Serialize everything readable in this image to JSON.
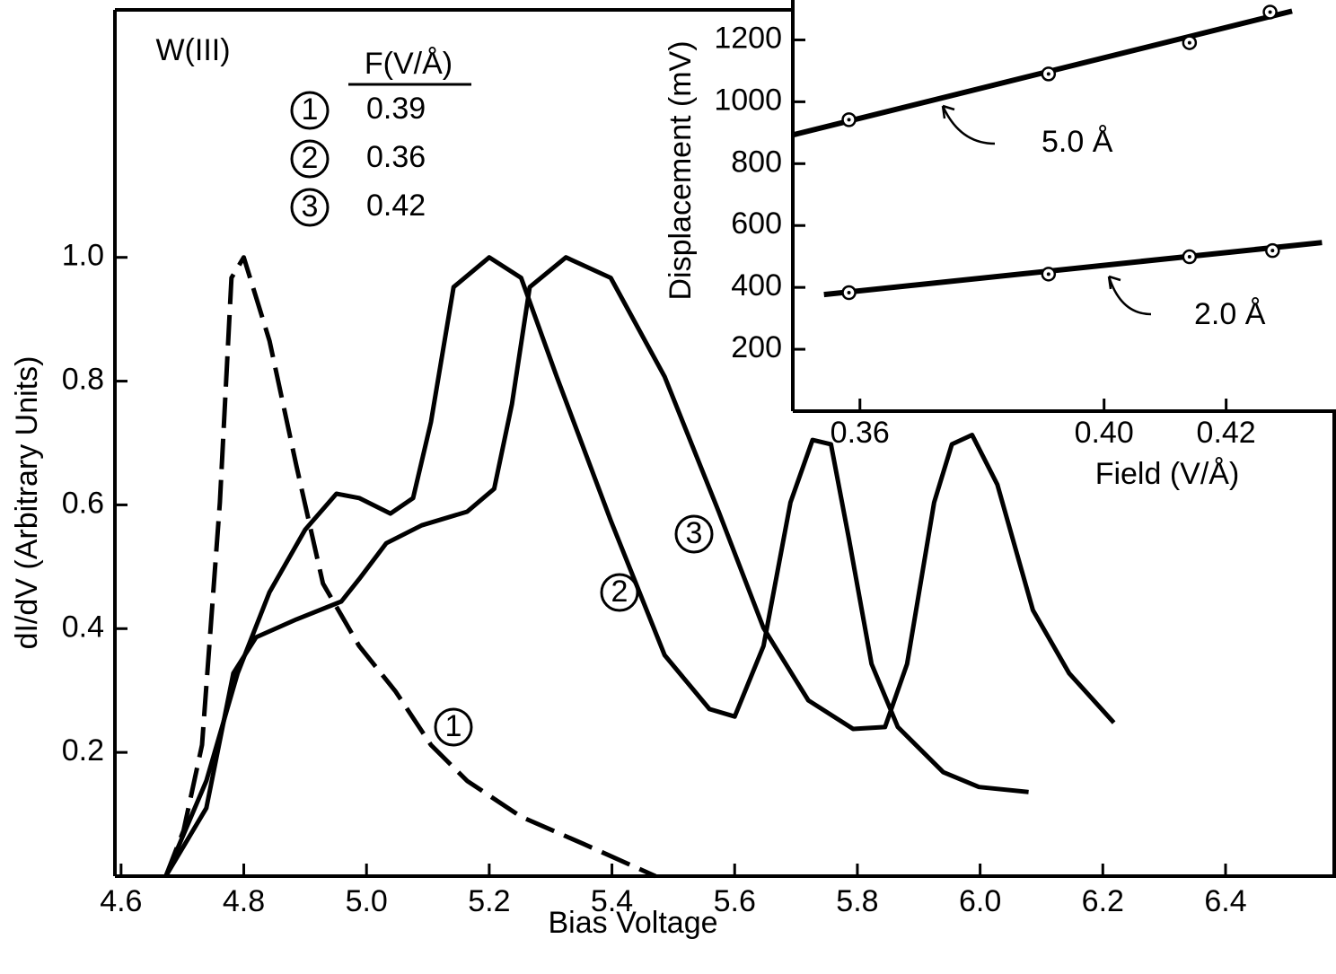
{
  "chart_data": [
    {
      "type": "line",
      "title": "W(III)",
      "xlabel": "Bias Voltage",
      "ylabel": "dI/dV (Arbitrary Units)",
      "legend_title": "F(V/Å)",
      "xlim": [
        4.59,
        6.58
      ],
      "ylim": [
        0,
        1.4
      ],
      "xticks": [
        4.6,
        4.8,
        {
          "value": 5,
          "label": "5.0"
        },
        5.2,
        5.4,
        5.6,
        5.8,
        {
          "value": 6,
          "label": "6.0"
        },
        6.2,
        6.4
      ],
      "yticks": [
        0.2,
        0.4,
        0.6,
        0.8,
        {
          "value": 1,
          "label": "1.0"
        }
      ],
      "series": [
        {
          "name": "1",
          "field": "0.39",
          "color": "#000000",
          "dashed": true,
          "x": [
            4.673,
            4.702,
            4.732,
            4.761,
            4.78,
            4.8,
            4.842,
            4.886,
            4.929,
            4.988,
            5.047,
            5.105,
            5.164,
            5.252,
            5.354,
            5.471
          ],
          "values": [
            0,
            0.074,
            0.212,
            0.604,
            0.967,
            1.0,
            0.865,
            0.662,
            0.473,
            0.372,
            0.299,
            0.212,
            0.154,
            0.096,
            0.052,
            0
          ]
        },
        {
          "name": "2",
          "field": "0.36",
          "color": "#000000",
          "dashed": false,
          "x": [
            4.673,
            4.739,
            4.79,
            4.842,
            4.9,
            4.951,
            4.988,
            5.039,
            5.076,
            5.105,
            5.142,
            5.2,
            5.252,
            5.31,
            5.398,
            5.486,
            5.559,
            5.6,
            5.647,
            5.691,
            5.727,
            5.757,
            5.786,
            5.823,
            5.866,
            5.94,
            5.998,
            6.079
          ],
          "values": [
            0,
            0.154,
            0.328,
            0.459,
            0.56,
            0.618,
            0.611,
            0.586,
            0.611,
            0.734,
            0.952,
            1.0,
            0.967,
            0.807,
            0.575,
            0.357,
            0.27,
            0.258,
            0.372,
            0.604,
            0.705,
            0.698,
            0.546,
            0.343,
            0.241,
            0.168,
            0.144,
            0.136
          ]
        },
        {
          "name": "3",
          "field": "0.42",
          "color": "#000000",
          "dashed": false,
          "x": [
            4.673,
            4.739,
            4.783,
            4.82,
            4.886,
            4.959,
            4.988,
            5.032,
            5.09,
            5.164,
            5.208,
            5.237,
            5.266,
            5.325,
            5.398,
            5.486,
            5.574,
            5.647,
            5.72,
            5.793,
            5.845,
            5.881,
            5.925,
            5.954,
            5.987,
            6.028,
            6.086,
            6.145,
            6.218
          ],
          "values": [
            0,
            0.11,
            0.328,
            0.386,
            0.415,
            0.444,
            0.48,
            0.538,
            0.567,
            0.589,
            0.626,
            0.763,
            0.952,
            1.0,
            0.967,
            0.807,
            0.589,
            0.401,
            0.284,
            0.238,
            0.241,
            0.343,
            0.604,
            0.698,
            0.713,
            0.633,
            0.43,
            0.328,
            0.248
          ]
        }
      ]
    },
    {
      "type": "scatter",
      "xlabel": "Field (V/Å)",
      "ylabel": "Displacement (mV)",
      "xlim": [
        0.349,
        0.438
      ],
      "ylim": [
        0,
        1300
      ],
      "xticks": [
        0.36,
        {
          "value": 0.4,
          "label": "0.40"
        },
        0.42
      ],
      "yticks": [
        200,
        400,
        600,
        800,
        1000,
        1200
      ],
      "series": [
        {
          "name": "5.0 Å",
          "color": "#000000",
          "x": [
            0.3582,
            0.3909,
            0.414,
            0.4272
          ],
          "values": [
            942,
            1090,
            1191,
            1290
          ],
          "fit_x": [
            0.349,
            0.4308
          ],
          "fit_values": [
            893,
            1293
          ]
        },
        {
          "name": "2.0 Å",
          "color": "#000000",
          "x": [
            0.3582,
            0.3909,
            0.414,
            0.4276
          ],
          "values": [
            383,
            443,
            499,
            519
          ],
          "fit_x": [
            0.3541,
            0.4357
          ],
          "fit_values": [
            377,
            545
          ]
        }
      ]
    }
  ]
}
